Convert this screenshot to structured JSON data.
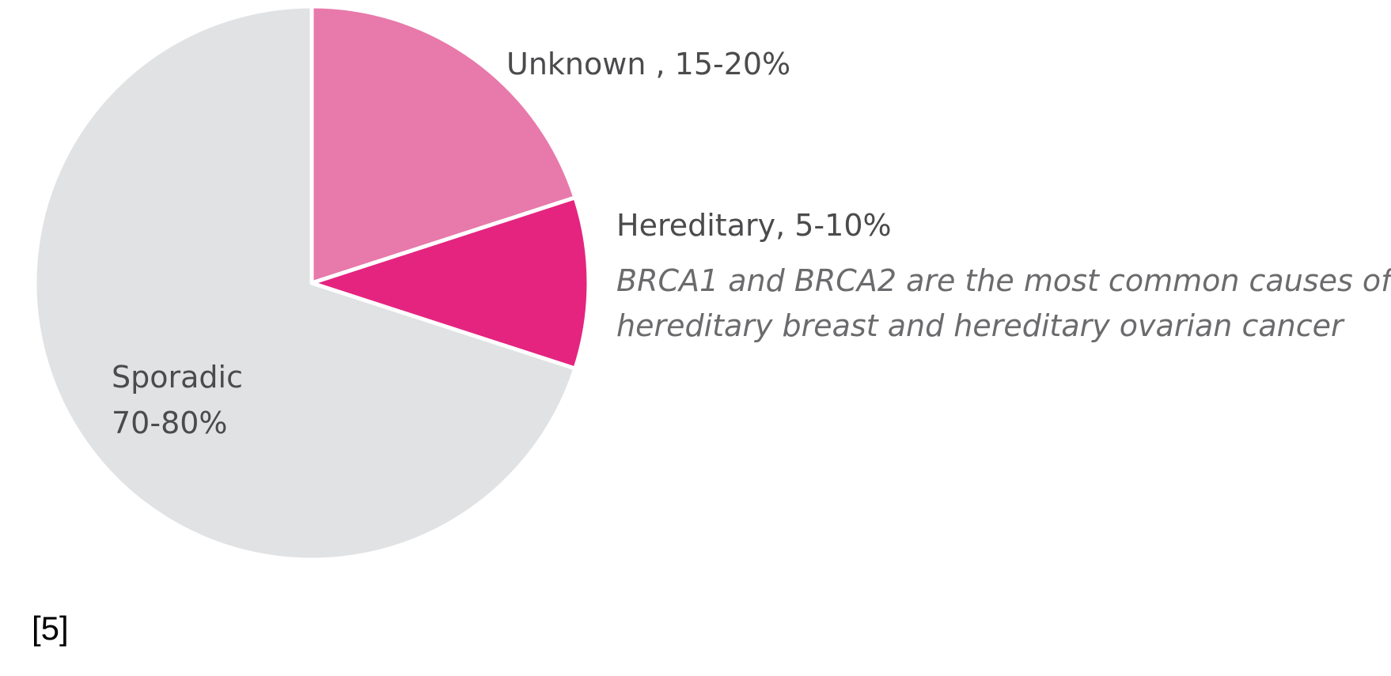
{
  "chart_data": {
    "type": "pie",
    "slices": [
      {
        "label": "Unknown",
        "range_text": "15-20%",
        "value": 20,
        "color": "#e879ab"
      },
      {
        "label": "Hereditary",
        "range_text": "5-10%",
        "value": 10,
        "color": "#e52480"
      },
      {
        "label": "Sporadic",
        "range_text": "70-80%",
        "value": 70,
        "color": "#e1e2e4"
      }
    ],
    "labels": {
      "unknown": "Unknown , 15-20%",
      "hereditary": "Hereditary, 5-10%",
      "sporadic_name": "Sporadic",
      "sporadic_value": "70-80%"
    },
    "annotation": [
      "BRCA1 and BRCA2 are the most common causes of",
      "hereditary breast and hereditary ovarian cancer"
    ],
    "start_angle": "12 o'clock, clockwise",
    "slice_separator_color": "#ffffff"
  },
  "reference": "[5]"
}
